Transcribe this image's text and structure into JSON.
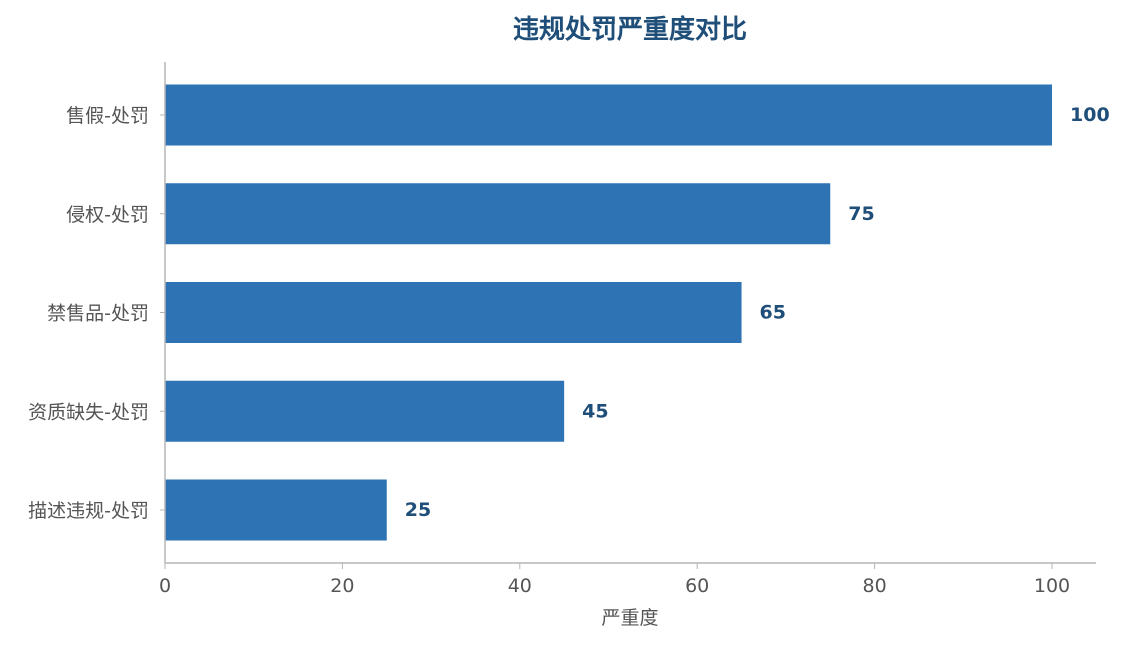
{
  "chart_data": {
    "type": "bar",
    "orientation": "horizontal",
    "title": "违规处罚严重度对比",
    "xlabel": "严重度",
    "ylabel": "",
    "categories": [
      "售假-处罚",
      "侵权-处罚",
      "禁售品-处罚",
      "资质缺失-处罚",
      "描述违规-处罚"
    ],
    "values": [
      100,
      75,
      65,
      45,
      25
    ],
    "xlim": [
      0,
      105
    ],
    "xticks": [
      0,
      20,
      40,
      60,
      80,
      100
    ],
    "grid": false,
    "legend": "none",
    "data_labels": true
  },
  "colors": {
    "bar": "#2e73b4",
    "title": "#1f4e79",
    "value_label": "#1f4e79",
    "axis": "#b5b5b5",
    "tick_text": "#555555",
    "category_text": "#555555"
  }
}
